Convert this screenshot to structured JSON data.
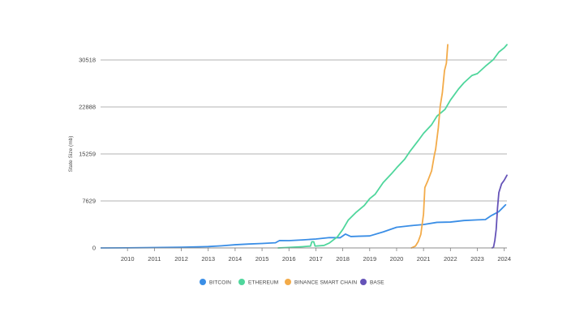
{
  "chart_data": {
    "type": "line",
    "title": "",
    "xlabel": "",
    "ylabel": "State Size (mb)",
    "xlim": [
      2009.0,
      2024.1
    ],
    "ylim": [
      0,
      33000
    ],
    "x_ticks": [
      "2010",
      "2011",
      "2012",
      "2013",
      "2014",
      "2015",
      "2016",
      "2017",
      "2018",
      "2019",
      "2020",
      "2021",
      "2022",
      "2023",
      "2024"
    ],
    "y_ticks": [
      0,
      7629,
      15259,
      22888,
      30518
    ],
    "y_tick_labels": [
      "0",
      "7629",
      "15259",
      "22888",
      "30518"
    ],
    "grid": true,
    "legend_position": "bottom-center",
    "series": [
      {
        "name": "BITCOIN",
        "color": "#3a8ee6",
        "points": [
          [
            2009.0,
            0
          ],
          [
            2010.0,
            20
          ],
          [
            2011.0,
            60
          ],
          [
            2012.0,
            110
          ],
          [
            2013.0,
            220
          ],
          [
            2013.5,
            350
          ],
          [
            2014.0,
            520
          ],
          [
            2014.5,
            630
          ],
          [
            2015.0,
            720
          ],
          [
            2015.5,
            840
          ],
          [
            2015.65,
            1200
          ],
          [
            2016.0,
            1180
          ],
          [
            2016.5,
            1300
          ],
          [
            2017.0,
            1450
          ],
          [
            2017.5,
            1680
          ],
          [
            2017.9,
            1650
          ],
          [
            2018.1,
            2250
          ],
          [
            2018.3,
            1850
          ],
          [
            2018.6,
            1900
          ],
          [
            2019.0,
            1950
          ],
          [
            2019.5,
            2600
          ],
          [
            2020.0,
            3350
          ],
          [
            2020.5,
            3600
          ],
          [
            2021.0,
            3800
          ],
          [
            2021.5,
            4150
          ],
          [
            2022.0,
            4200
          ],
          [
            2022.5,
            4450
          ],
          [
            2023.0,
            4550
          ],
          [
            2023.3,
            4600
          ],
          [
            2023.5,
            5200
          ],
          [
            2023.8,
            5900
          ],
          [
            2024.05,
            7000
          ]
        ]
      },
      {
        "name": "ETHEREUM",
        "color": "#4fd69c",
        "points": [
          [
            2015.6,
            0
          ],
          [
            2016.0,
            80
          ],
          [
            2016.5,
            200
          ],
          [
            2016.8,
            300
          ],
          [
            2016.85,
            1000
          ],
          [
            2016.92,
            1000
          ],
          [
            2016.97,
            300
          ],
          [
            2017.3,
            400
          ],
          [
            2017.5,
            800
          ],
          [
            2017.8,
            1800
          ],
          [
            2018.0,
            3000
          ],
          [
            2018.2,
            4500
          ],
          [
            2018.5,
            5800
          ],
          [
            2018.8,
            6900
          ],
          [
            2019.0,
            8000
          ],
          [
            2019.2,
            8700
          ],
          [
            2019.5,
            10600
          ],
          [
            2019.8,
            12000
          ],
          [
            2020.0,
            13000
          ],
          [
            2020.3,
            14400
          ],
          [
            2020.5,
            15700
          ],
          [
            2020.8,
            17400
          ],
          [
            2021.0,
            18600
          ],
          [
            2021.3,
            20000
          ],
          [
            2021.5,
            21400
          ],
          [
            2021.8,
            22500
          ],
          [
            2022.0,
            24000
          ],
          [
            2022.3,
            25800
          ],
          [
            2022.5,
            26800
          ],
          [
            2022.8,
            28000
          ],
          [
            2023.0,
            28300
          ],
          [
            2023.3,
            29500
          ],
          [
            2023.6,
            30600
          ],
          [
            2023.8,
            31800
          ],
          [
            2024.0,
            32500
          ],
          [
            2024.1,
            33000
          ]
        ]
      },
      {
        "name": "BINANCE SMART CHAIN",
        "color": "#f3ab49",
        "points": [
          [
            2020.55,
            0
          ],
          [
            2020.7,
            300
          ],
          [
            2020.8,
            1000
          ],
          [
            2020.9,
            2200
          ],
          [
            2021.0,
            5500
          ],
          [
            2021.05,
            9800
          ],
          [
            2021.15,
            10800
          ],
          [
            2021.3,
            12500
          ],
          [
            2021.4,
            15000
          ],
          [
            2021.45,
            16000
          ],
          [
            2021.55,
            19500
          ],
          [
            2021.62,
            23000
          ],
          [
            2021.7,
            25200
          ],
          [
            2021.78,
            28800
          ],
          [
            2021.85,
            30000
          ],
          [
            2021.9,
            33000
          ]
        ]
      },
      {
        "name": "BASE",
        "color": "#6553b8",
        "points": [
          [
            2023.55,
            0
          ],
          [
            2023.6,
            100
          ],
          [
            2023.65,
            1200
          ],
          [
            2023.7,
            3000
          ],
          [
            2023.75,
            6500
          ],
          [
            2023.8,
            9000
          ],
          [
            2023.9,
            10400
          ],
          [
            2024.0,
            11000
          ],
          [
            2024.1,
            11800
          ]
        ]
      }
    ]
  }
}
